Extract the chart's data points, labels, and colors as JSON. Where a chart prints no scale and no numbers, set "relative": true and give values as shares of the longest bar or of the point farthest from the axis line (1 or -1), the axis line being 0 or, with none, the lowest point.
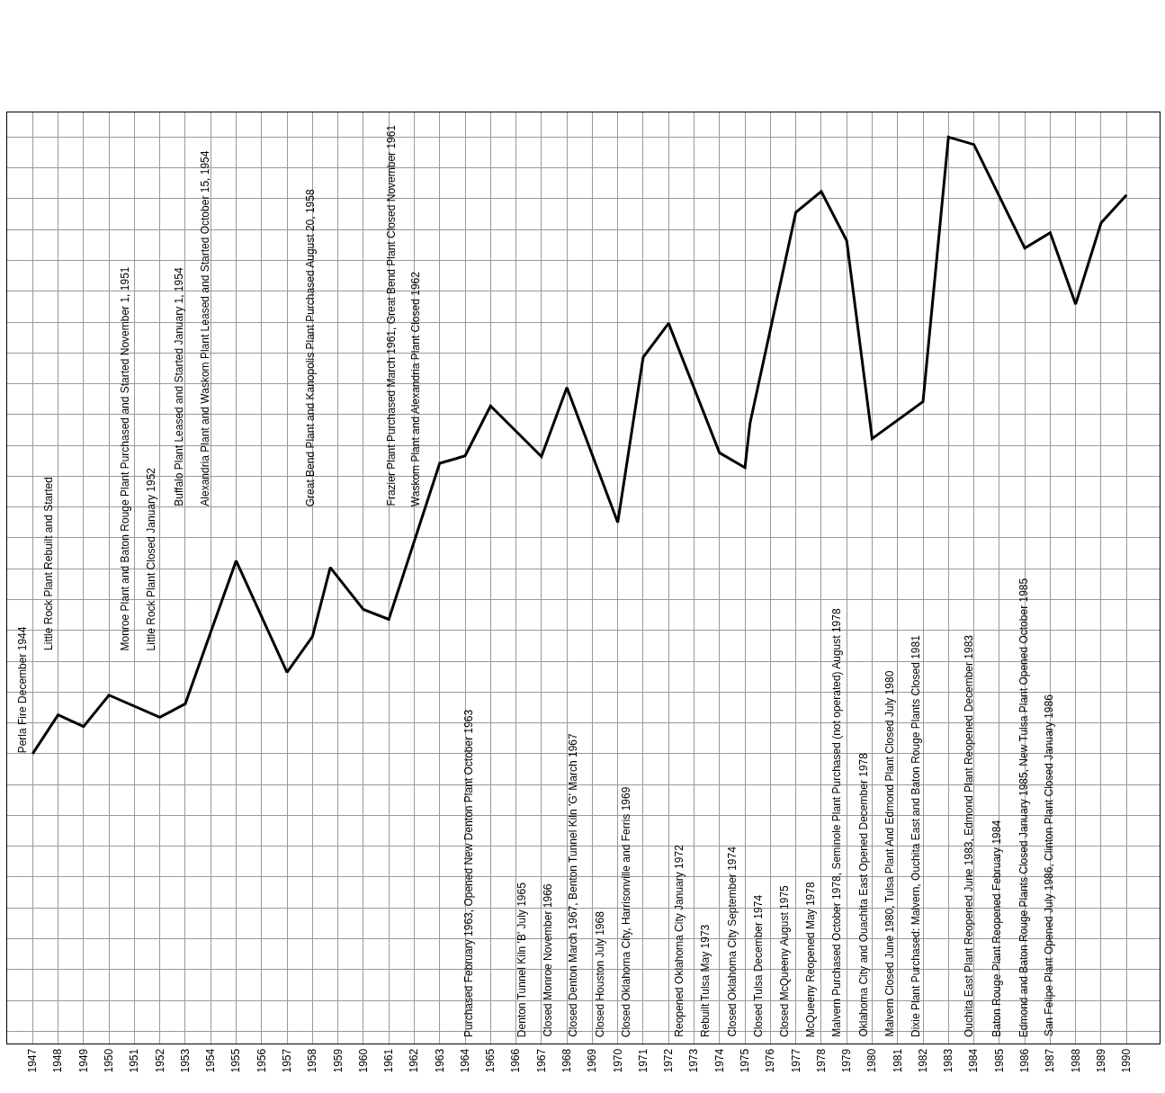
{
  "chart_data": {
    "type": "line",
    "relative": true,
    "grid": true,
    "xlim": [
      1946,
      1991.3
    ],
    "xticks": [
      1947,
      1948,
      1949,
      1950,
      1951,
      1952,
      1953,
      1954,
      1955,
      1956,
      1957,
      1958,
      1959,
      1960,
      1961,
      1962,
      1963,
      1964,
      1965,
      1966,
      1967,
      1968,
      1969,
      1970,
      1971,
      1972,
      1973,
      1974,
      1975,
      1976,
      1977,
      1978,
      1979,
      1980,
      1981,
      1982,
      1983,
      1984,
      1985,
      1986,
      1987,
      1988,
      1989,
      1990
    ],
    "x": [
      1947,
      1948,
      1949,
      1950,
      1952,
      1953,
      1955,
      1957,
      1958,
      1958.7,
      1960,
      1961,
      1963,
      1964,
      1965,
      1967,
      1968,
      1970,
      1971,
      1972,
      1974,
      1975,
      1975.2,
      1977,
      1978,
      1979,
      1980,
      1982,
      1983,
      1984,
      1986,
      1987,
      1988,
      1989,
      1990
    ],
    "series": [
      {
        "color": "#000000",
        "values": [
          0,
          0.063,
          0.044,
          0.095,
          0.059,
          0.081,
          0.313,
          0.132,
          0.19,
          0.302,
          0.234,
          0.218,
          0.471,
          0.483,
          0.564,
          0.482,
          0.594,
          0.375,
          0.643,
          0.698,
          0.488,
          0.464,
          0.536,
          0.878,
          0.912,
          0.832,
          0.511,
          0.571,
          1,
          0.988,
          0.82,
          0.845,
          0.729,
          0.861,
          0.906
        ]
      }
    ],
    "annotations": [
      "Perla Fire December 1944",
      "Little Rock Plant Rebuilt and Started",
      "Monroe Plant and Baton Rouge Plant Purchased and Started November 1, 1951",
      "Little Rock Plant Closed January 1952",
      "Buffalo Plant Leased and Started January 1, 1954",
      "Alexandria Plant and Waskom Plant Leased and Started October 15, 1954",
      "Great Bend Plant and Kanopolis Plant Purchased August 20, 1958",
      "Frazier Plant Purchased March 1961, Great Bend Plant Closed November 1961",
      "Waskom Plant and Alexandria Plant Closed 1962",
      "Purchased February 1963, Opened New Denton Plant October 1963",
      "Denton Tunnel Kiln 'B' July 1965",
      "Closed Monroe November 1966",
      "Closed Denton March 1967, Benton Tunnel Kiln 'G' March 1967",
      "Closed Houston July 1968",
      "Closed Oklahoma City, Harrisonville and Ferris 1969",
      "Reopened Oklahoma City January 1972",
      "Rebuilt Tulsa May 1973",
      "Closed Oklahoma City September 1974",
      "Closed Tulsa December 1974",
      "Closed McQueeny August 1975",
      "McQueeny Reopened May 1978",
      "Malvern Purchased October 1978, Seminole Plant Purchased (not operated) August 1978",
      "Oklahoma City and Ouachita East Opened December 1978",
      "Malvern Closed June 1980, Tulsa Plant And Edmond Plant Closed July 1980",
      "Dixie Plant Purchased: Malvern, Ouchita East and Baton Rouge Plants Closed 1981",
      "Ouchita East Plant Reopened June 1983, Edmond Plant Reopened December 1983",
      "Baton Rouge Plant Reopened February 1984",
      "Edmond and Baton Rouge Plants Closed January 1985, New Tulsa Plant Opened October 1985",
      "San Felipe Plant Opened July 1986, Clinton Plant Closed January 1986"
    ]
  }
}
